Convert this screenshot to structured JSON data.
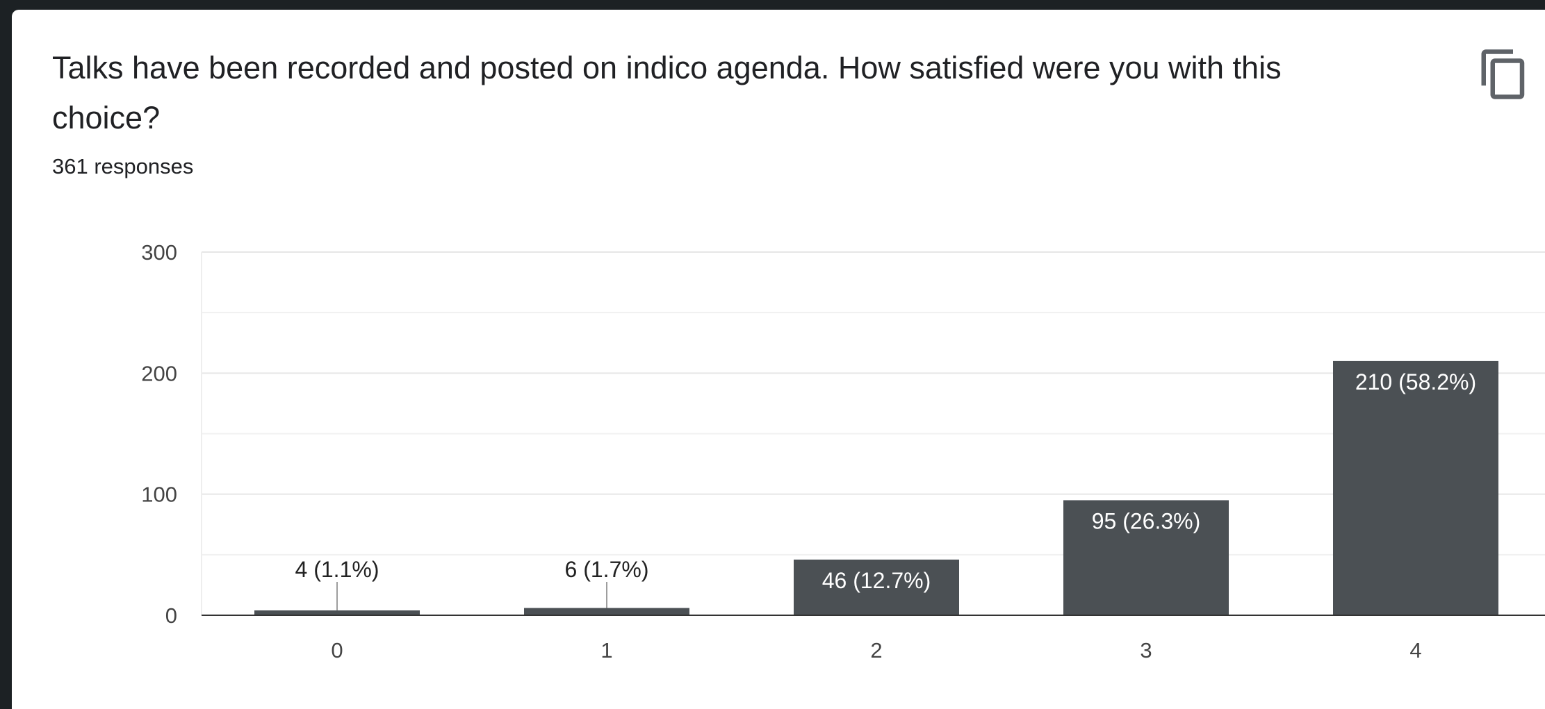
{
  "question": {
    "title": "Talks have been recorded and posted on indico agenda. How satisfied were you with this choice?",
    "responses": "361 responses",
    "copy_icon": "copy-icon"
  },
  "colors": {
    "bar": "#4b5054",
    "grid": "#e6e6e6",
    "axis": "#333333"
  },
  "chart_data": {
    "type": "bar",
    "categories": [
      "0",
      "1",
      "2",
      "3",
      "4"
    ],
    "values": [
      4,
      6,
      46,
      95,
      210
    ],
    "labels": [
      "4 (1.1%)",
      "6 (1.7%)",
      "46 (12.7%)",
      "95 (26.3%)",
      "210 (58.2%)"
    ],
    "yticks": [
      "0",
      "100",
      "200",
      "300"
    ],
    "ylim": [
      0,
      300
    ],
    "grid": true,
    "minor_gridlines": [
      50,
      150,
      250
    ]
  }
}
